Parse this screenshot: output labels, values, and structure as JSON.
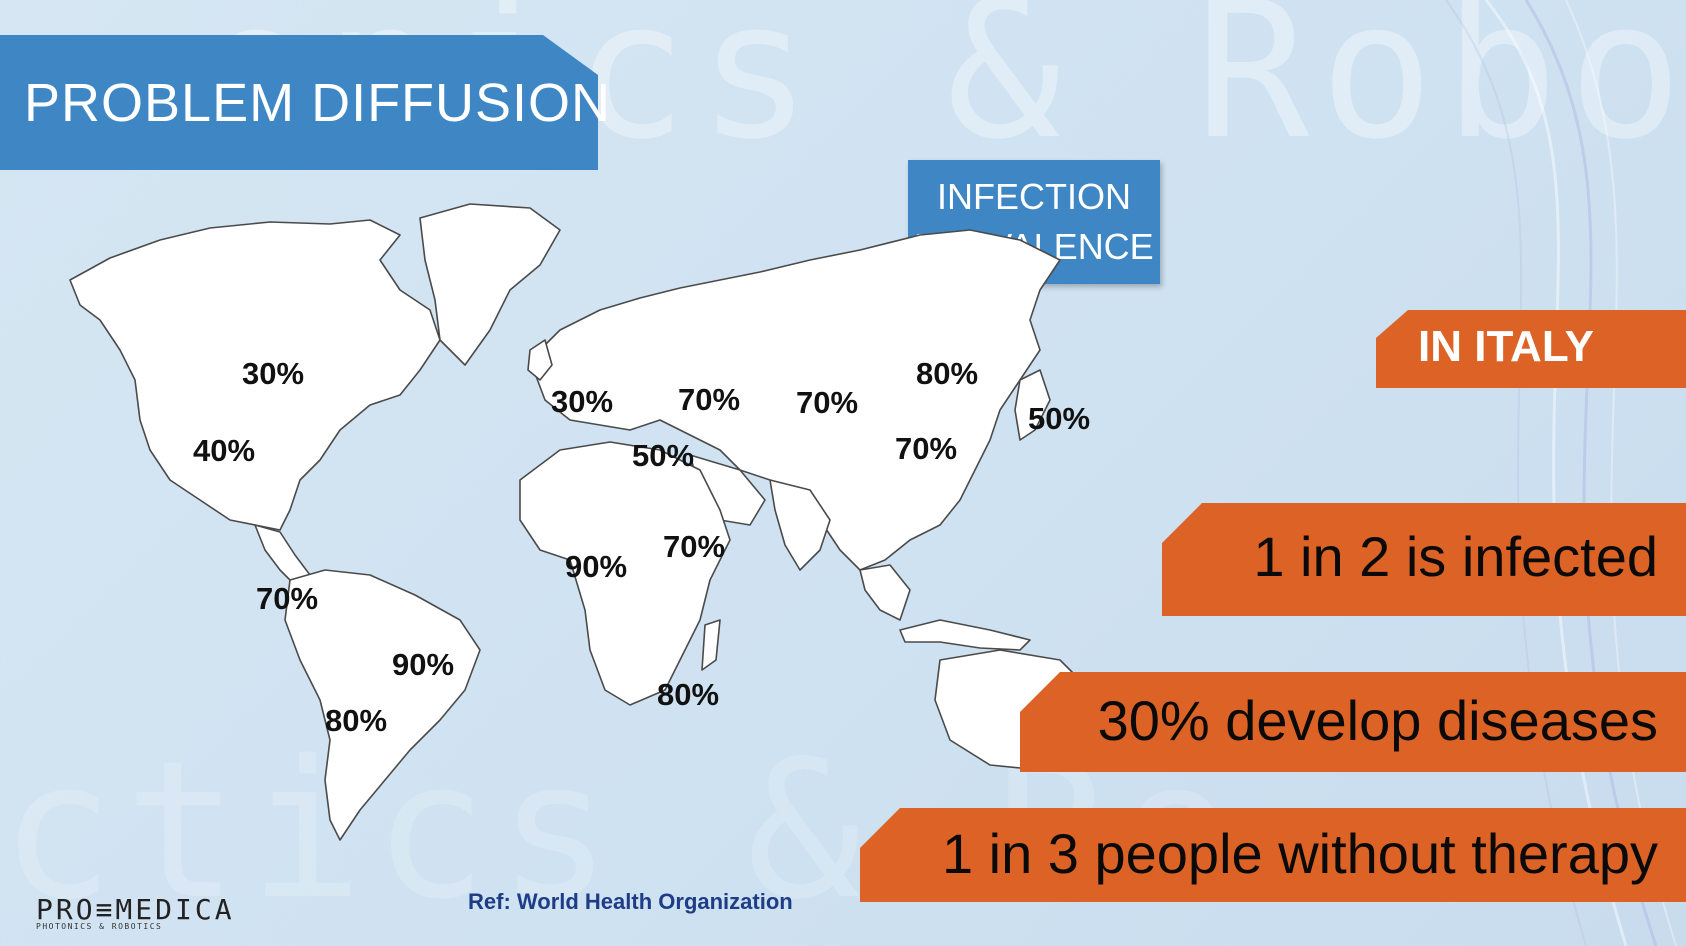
{
  "slide": {
    "title": "PROBLEM DIFFUSION",
    "legend": [
      "INFECTION",
      "PREVALENCE"
    ],
    "watermark_top": "onics & Robo",
    "watermark_bottom": "ctics & Ro",
    "colors": {
      "blue_banner": "#3f87c4",
      "orange_banner": "#dc6225",
      "background": "#d0e3f2"
    }
  },
  "map": {
    "labels": {
      "na_north": "30%",
      "na_south": "40%",
      "central_america": "70%",
      "sa_brazil": "90%",
      "sa_south": "80%",
      "western_europe": "30%",
      "eastern_europe": "70%",
      "southern_europe": "50%",
      "central_asia": "70%",
      "siberia": "80%",
      "east_asia": "50%",
      "china": "70%",
      "west_africa": "90%",
      "east_africa": "70%",
      "south_africa": "80%"
    }
  },
  "italy": {
    "badge": "IN ITALY",
    "facts": [
      "1 in 2 is infected",
      "30% develop diseases",
      "1 in 3 people without therapy"
    ]
  },
  "footer": {
    "reference": "Ref: World Health Organization",
    "logo_main": "PRO≡MEDICA",
    "logo_sub": "PHOTONICS & ROBOTICS"
  }
}
